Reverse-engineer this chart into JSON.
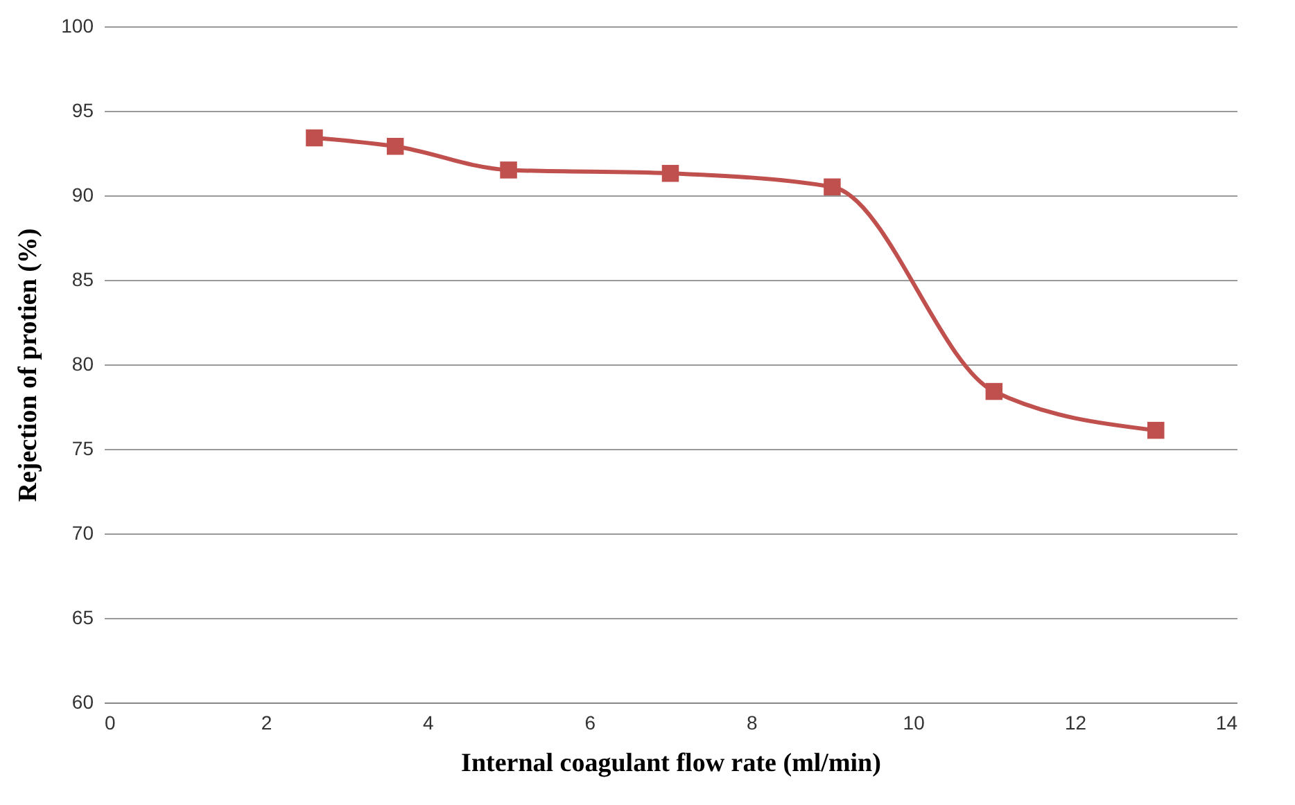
{
  "chart_data": {
    "type": "line",
    "xlabel": "Internal coagulant flow rate (ml/min)",
    "ylabel": "Rejection of protien (%)",
    "x": [
      2.6,
      3.6,
      5,
      7,
      9,
      11,
      13
    ],
    "series": [
      {
        "color": "#c0504d",
        "values": [
          93.4,
          92.9,
          91.5,
          91.3,
          90.5,
          78.4,
          76.1
        ]
      }
    ],
    "xlim": [
      0,
      14
    ],
    "xticks": [
      0,
      2,
      4,
      6,
      8,
      10,
      12,
      14
    ],
    "ylim": [
      60,
      100
    ],
    "yticks": [
      60,
      65,
      70,
      75,
      80,
      85,
      90,
      95,
      100
    ],
    "grid": "y",
    "marker": "square",
    "line_style": "solid"
  }
}
